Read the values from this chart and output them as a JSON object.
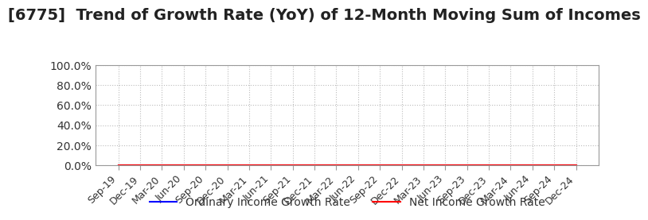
{
  "title": "[6775]  Trend of Growth Rate (YoY) of 12-Month Moving Sum of Incomes",
  "title_fontsize": 14,
  "title_color": "#222222",
  "ylim": [
    0.0,
    1.0
  ],
  "yticks": [
    0.0,
    0.2,
    0.4,
    0.6,
    0.8,
    1.0
  ],
  "ytick_labels": [
    "0.0%",
    "20.0%",
    "40.0%",
    "60.0%",
    "80.0%",
    "100.0%"
  ],
  "x_labels": [
    "Sep-19",
    "Dec-19",
    "Mar-20",
    "Jun-20",
    "Sep-20",
    "Dec-20",
    "Mar-21",
    "Jun-21",
    "Sep-21",
    "Dec-21",
    "Mar-22",
    "Jun-22",
    "Sep-22",
    "Dec-22",
    "Mar-23",
    "Jun-23",
    "Sep-23",
    "Dec-23",
    "Mar-24",
    "Jun-24",
    "Sep-24",
    "Dec-24"
  ],
  "ordinary_income_growth": [
    0,
    0,
    0,
    0,
    0,
    0,
    0,
    0,
    0,
    0,
    0,
    0,
    0,
    0,
    0,
    0,
    0,
    0,
    0,
    0,
    0,
    0
  ],
  "net_income_growth": [
    0,
    0,
    0,
    0,
    0,
    0,
    0,
    0,
    0,
    0,
    0,
    0,
    0,
    0,
    0,
    0,
    0,
    0,
    0,
    0,
    0,
    0
  ],
  "ordinary_color": "#0000FF",
  "net_color": "#FF0000",
  "line_width": 1.5,
  "legend_labels": [
    "Ordinary Income Growth Rate",
    "Net Income Growth Rate"
  ],
  "background_color": "#FFFFFF",
  "grid_color": "#BBBBBB",
  "tick_color": "#333333",
  "tick_fontsize": 9,
  "ytick_fontsize": 10
}
